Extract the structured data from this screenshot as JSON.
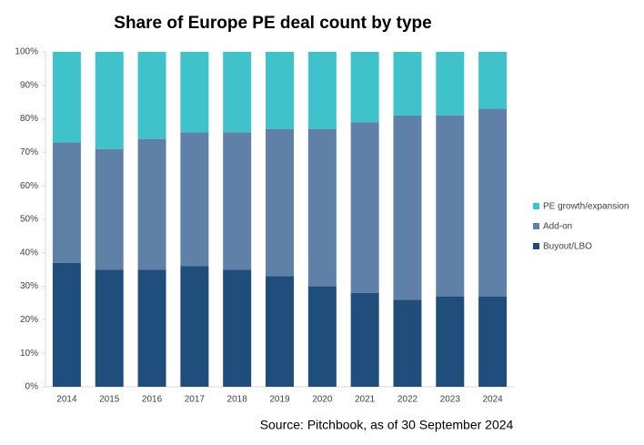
{
  "chart_data": {
    "type": "stacked-bar",
    "title": "Share of Europe PE deal count by type",
    "categories": [
      "2014",
      "2015",
      "2016",
      "2017",
      "2018",
      "2019",
      "2020",
      "2021",
      "2022",
      "2023",
      "2024"
    ],
    "series": [
      {
        "name": "Buyout/LBO",
        "color": "#1f4e7d",
        "values": [
          37,
          35,
          35,
          36,
          35,
          33,
          30,
          28,
          26,
          27,
          27
        ]
      },
      {
        "name": "Add-on",
        "color": "#5f81a8",
        "values": [
          36,
          36,
          39,
          40,
          41,
          44,
          47,
          51,
          55,
          54,
          56
        ]
      },
      {
        "name": "PE growth/expansion",
        "color": "#3fc2c9",
        "values": [
          27,
          29,
          26,
          24,
          24,
          23,
          23,
          21,
          19,
          19,
          17
        ]
      }
    ],
    "ylim": [
      0,
      100
    ],
    "yticks": [
      {
        "value": 0,
        "label": "0%"
      },
      {
        "value": 10,
        "label": "10%"
      },
      {
        "value": 20,
        "label": "20%"
      },
      {
        "value": 30,
        "label": "30%"
      },
      {
        "value": 40,
        "label": "40%"
      },
      {
        "value": 50,
        "label": "50%"
      },
      {
        "value": 60,
        "label": "60%"
      },
      {
        "value": 70,
        "label": "70%"
      },
      {
        "value": 80,
        "label": "80%"
      },
      {
        "value": 90,
        "label": "90%"
      },
      {
        "value": 100,
        "label": "100%"
      }
    ],
    "grid": false,
    "legend": "right",
    "source": "Source: Pitchbook, as of 30 September 2024"
  }
}
